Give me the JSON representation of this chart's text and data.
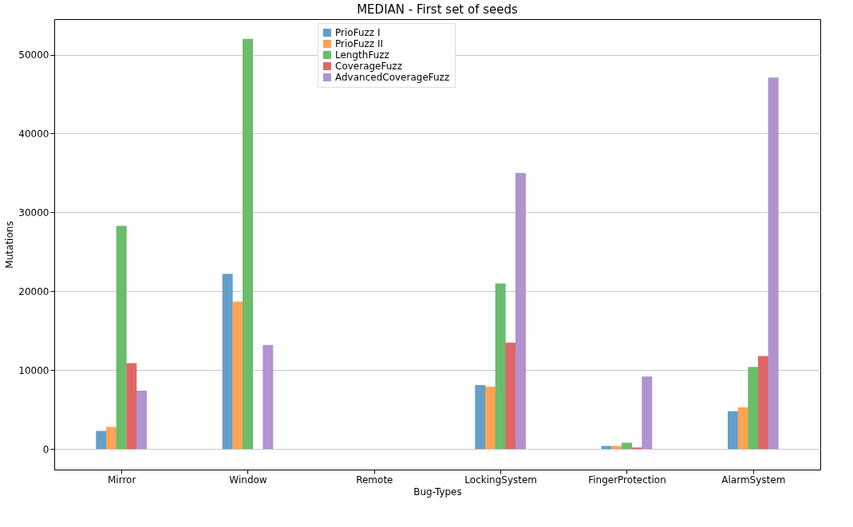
{
  "chart_data": {
    "type": "bar",
    "title": "MEDIAN - First set of seeds",
    "xlabel": "Bug-Types",
    "ylabel": "Mutations",
    "categories": [
      "Mirror",
      "Window",
      "Remote",
      "LockingSystem",
      "FingerProtection",
      "AlarmSystem"
    ],
    "series": [
      {
        "name": "PrioFuzz I",
        "color": "#629fca",
        "values": [
          2300,
          22200,
          0,
          8100,
          400,
          4800
        ]
      },
      {
        "name": "PrioFuzz II",
        "color": "#ffa354",
        "values": [
          2800,
          18700,
          0,
          7900,
          400,
          5300
        ]
      },
      {
        "name": "LengthFuzz",
        "color": "#6bbc6b",
        "values": [
          28300,
          52000,
          0,
          21000,
          800,
          10400
        ]
      },
      {
        "name": "CoverageFuzz",
        "color": "#e06666",
        "values": [
          10900,
          0,
          0,
          13500,
          200,
          11800
        ]
      },
      {
        "name": "AdvancedCoverageFuzz",
        "color": "#b193cf",
        "values": [
          7400,
          13200,
          0,
          35000,
          9200,
          47100
        ]
      }
    ],
    "ylim": [
      -2600,
      54500
    ],
    "yticks": [
      0,
      10000,
      20000,
      30000,
      40000,
      50000
    ],
    "grid": "y",
    "legend": "top"
  }
}
